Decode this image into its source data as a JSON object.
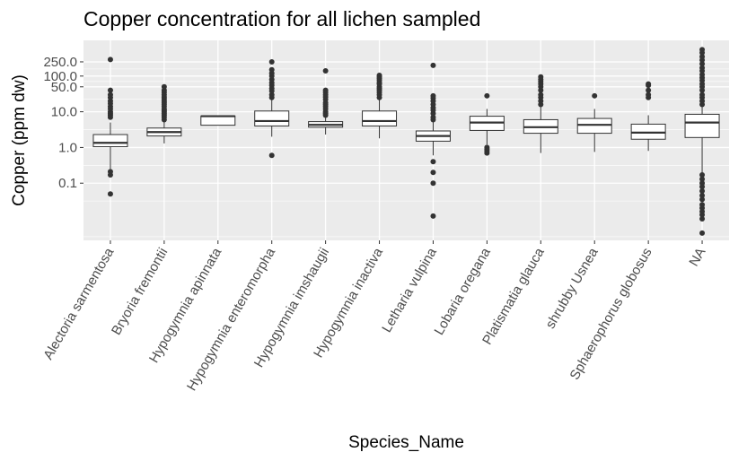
{
  "chart_data": {
    "type": "box",
    "title": "Copper concentration for all lichen sampled",
    "xlabel": "Species_Name",
    "ylabel": "Copper (ppm dw)",
    "y_scale": "log10",
    "ylim": [
      0.0025,
      1000
    ],
    "y_ticks": [
      {
        "value": 0.1,
        "label": "0.1"
      },
      {
        "value": 1,
        "label": "1.0"
      },
      {
        "value": 10,
        "label": "10.0"
      },
      {
        "value": 50,
        "label": "50.0"
      },
      {
        "value": 100,
        "label": "100.0"
      },
      {
        "value": 250,
        "label": "250.0"
      }
    ],
    "grid": true,
    "categories": [
      "Alectoria sarmentosa",
      "Bryoria fremontii",
      "Hypogymnia apinnata",
      "Hypogymnia enteromorpha",
      "Hypogymnia imshaugii",
      "Hypogymnia inactiva",
      "Letharia vulpina",
      "Lobaria oregana",
      "Platismatia glauca",
      "shrubby Usnea",
      "Sphaerophorus globosus",
      "NA"
    ],
    "boxes": [
      {
        "lower": 0.25,
        "q1": 1.05,
        "median": 1.35,
        "q3": 2.3,
        "upper": 5.0,
        "outliers": [
          0.05,
          0.17,
          0.21,
          7,
          8,
          9,
          10,
          12,
          14,
          17,
          20,
          25,
          30,
          40,
          290
        ]
      },
      {
        "lower": 1.3,
        "q1": 2.1,
        "median": 2.7,
        "q3": 3.5,
        "upper": 5.5,
        "outliers": [
          6,
          7,
          8,
          9,
          10,
          11,
          12,
          14,
          16,
          18,
          20,
          23,
          26,
          30,
          35,
          40,
          50
        ]
      },
      {
        "lower": 4.2,
        "q1": 4.2,
        "median": 7.5,
        "q3": 7.6,
        "upper": 7.6,
        "outliers": []
      },
      {
        "lower": 2.0,
        "q1": 4.0,
        "median": 5.5,
        "q3": 10.5,
        "upper": 22,
        "outliers": [
          0.6,
          25,
          30,
          38,
          45,
          55,
          65,
          80,
          100,
          120,
          150,
          250
        ]
      },
      {
        "lower": 2.3,
        "q1": 3.7,
        "median": 4.3,
        "q3": 5.3,
        "upper": 7.5,
        "outliers": [
          8,
          9,
          10,
          12,
          14,
          16,
          18,
          22,
          26,
          30,
          35,
          40,
          140
        ]
      },
      {
        "lower": 1.8,
        "q1": 4.0,
        "median": 5.5,
        "q3": 10.5,
        "upper": 22,
        "outliers": [
          25,
          30,
          35,
          40,
          45,
          50,
          60,
          65,
          75,
          85,
          95,
          105
        ]
      },
      {
        "lower": 0.6,
        "q1": 1.5,
        "median": 2.1,
        "q3": 2.9,
        "upper": 5.5,
        "outliers": [
          0.012,
          0.1,
          0.2,
          0.4,
          6,
          7,
          9,
          11,
          13,
          16,
          20,
          24,
          28,
          200
        ]
      },
      {
        "lower": 1.2,
        "q1": 3.0,
        "median": 5.0,
        "q3": 7.5,
        "upper": 12,
        "outliers": [
          0.7,
          0.8,
          0.9,
          1.0,
          28
        ]
      },
      {
        "lower": 0.7,
        "q1": 2.5,
        "median": 3.7,
        "q3": 6.0,
        "upper": 14,
        "outliers": [
          16,
          20,
          25,
          30,
          40,
          50,
          60,
          70,
          80,
          95
        ]
      },
      {
        "lower": 0.75,
        "q1": 2.5,
        "median": 4.3,
        "q3": 6.5,
        "upper": 12,
        "outliers": [
          28
        ]
      },
      {
        "lower": 0.8,
        "q1": 1.7,
        "median": 2.6,
        "q3": 4.5,
        "upper": 8,
        "outliers": [
          25,
          30,
          40,
          55,
          60
        ]
      },
      {
        "lower": 0.07,
        "q1": 1.9,
        "median": 5.0,
        "q3": 8.5,
        "upper": 14,
        "outliers": [
          0.004,
          0.01,
          0.013,
          0.016,
          0.02,
          0.025,
          0.035,
          0.045,
          0.06,
          0.08,
          0.1,
          0.13,
          0.17,
          16,
          20,
          25,
          30,
          40,
          50,
          60,
          75,
          90,
          110,
          140,
          170,
          220,
          280,
          350,
          450,
          550
        ]
      }
    ]
  }
}
